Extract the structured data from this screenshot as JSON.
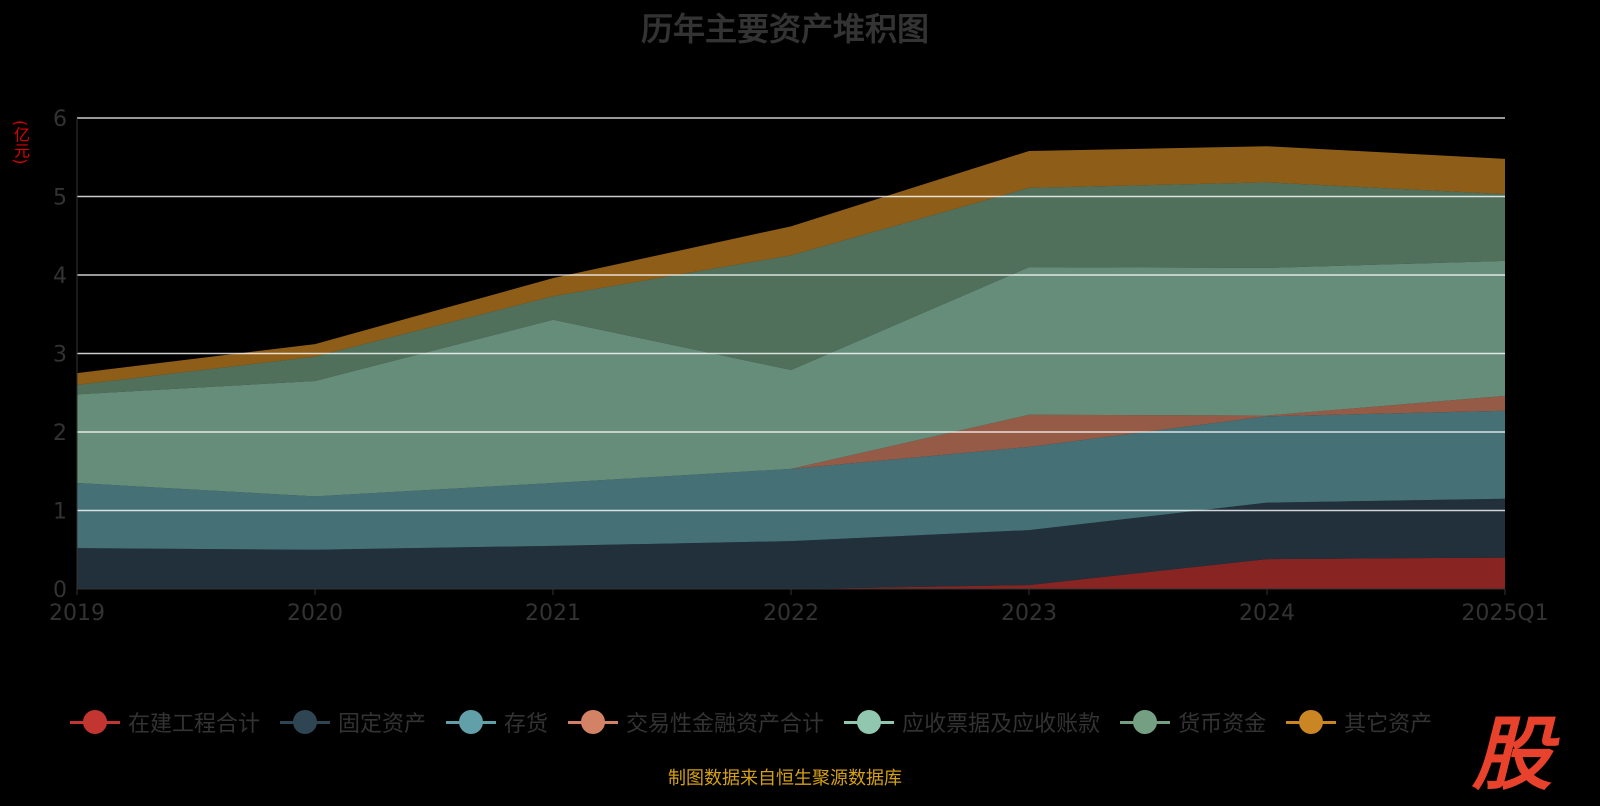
{
  "chart_data": {
    "type": "area",
    "title": "历年主要资产堆积图",
    "ylabel": "(亿元)",
    "ylim": [
      0,
      6
    ],
    "yticks": [
      "0",
      "1",
      "2",
      "3",
      "4",
      "5",
      "6"
    ],
    "categories": [
      "2019",
      "2020",
      "2021",
      "2022",
      "2023",
      "2024",
      "2025Q1"
    ],
    "stacked": true,
    "series": [
      {
        "name": "在建工程合计",
        "color": "#c23531",
        "values": [
          0,
          0,
          0,
          0,
          0.05,
          0.38,
          0.4
        ]
      },
      {
        "name": "固定资产",
        "color": "#2f4554",
        "values": [
          0.52,
          0.5,
          0.55,
          0.61,
          0.7,
          0.72,
          0.75
        ]
      },
      {
        "name": "存货",
        "color": "#61a0a8",
        "values": [
          0.83,
          0.68,
          0.8,
          0.92,
          1.06,
          1.1,
          1.12
        ]
      },
      {
        "name": "交易性金融资产合计",
        "color": "#d48265",
        "values": [
          0,
          0,
          0,
          0,
          0.41,
          0.01,
          0.19
        ]
      },
      {
        "name": "应收票据及应收账款",
        "color": "#91c7ae",
        "values": [
          1.13,
          1.47,
          2.08,
          1.26,
          1.88,
          1.88,
          1.72
        ]
      },
      {
        "name": "货币资金",
        "color": "#749f83",
        "values": [
          0.12,
          0.31,
          0.3,
          1.46,
          1.01,
          1.09,
          0.85
        ]
      },
      {
        "name": "其它资产",
        "color": "#ca8622",
        "values": [
          0.15,
          0.16,
          0.23,
          0.37,
          0.47,
          0.46,
          0.45
        ]
      }
    ],
    "legend_position": "bottom"
  },
  "source": "制图数据来自恒生聚源数据库",
  "logo": "股"
}
